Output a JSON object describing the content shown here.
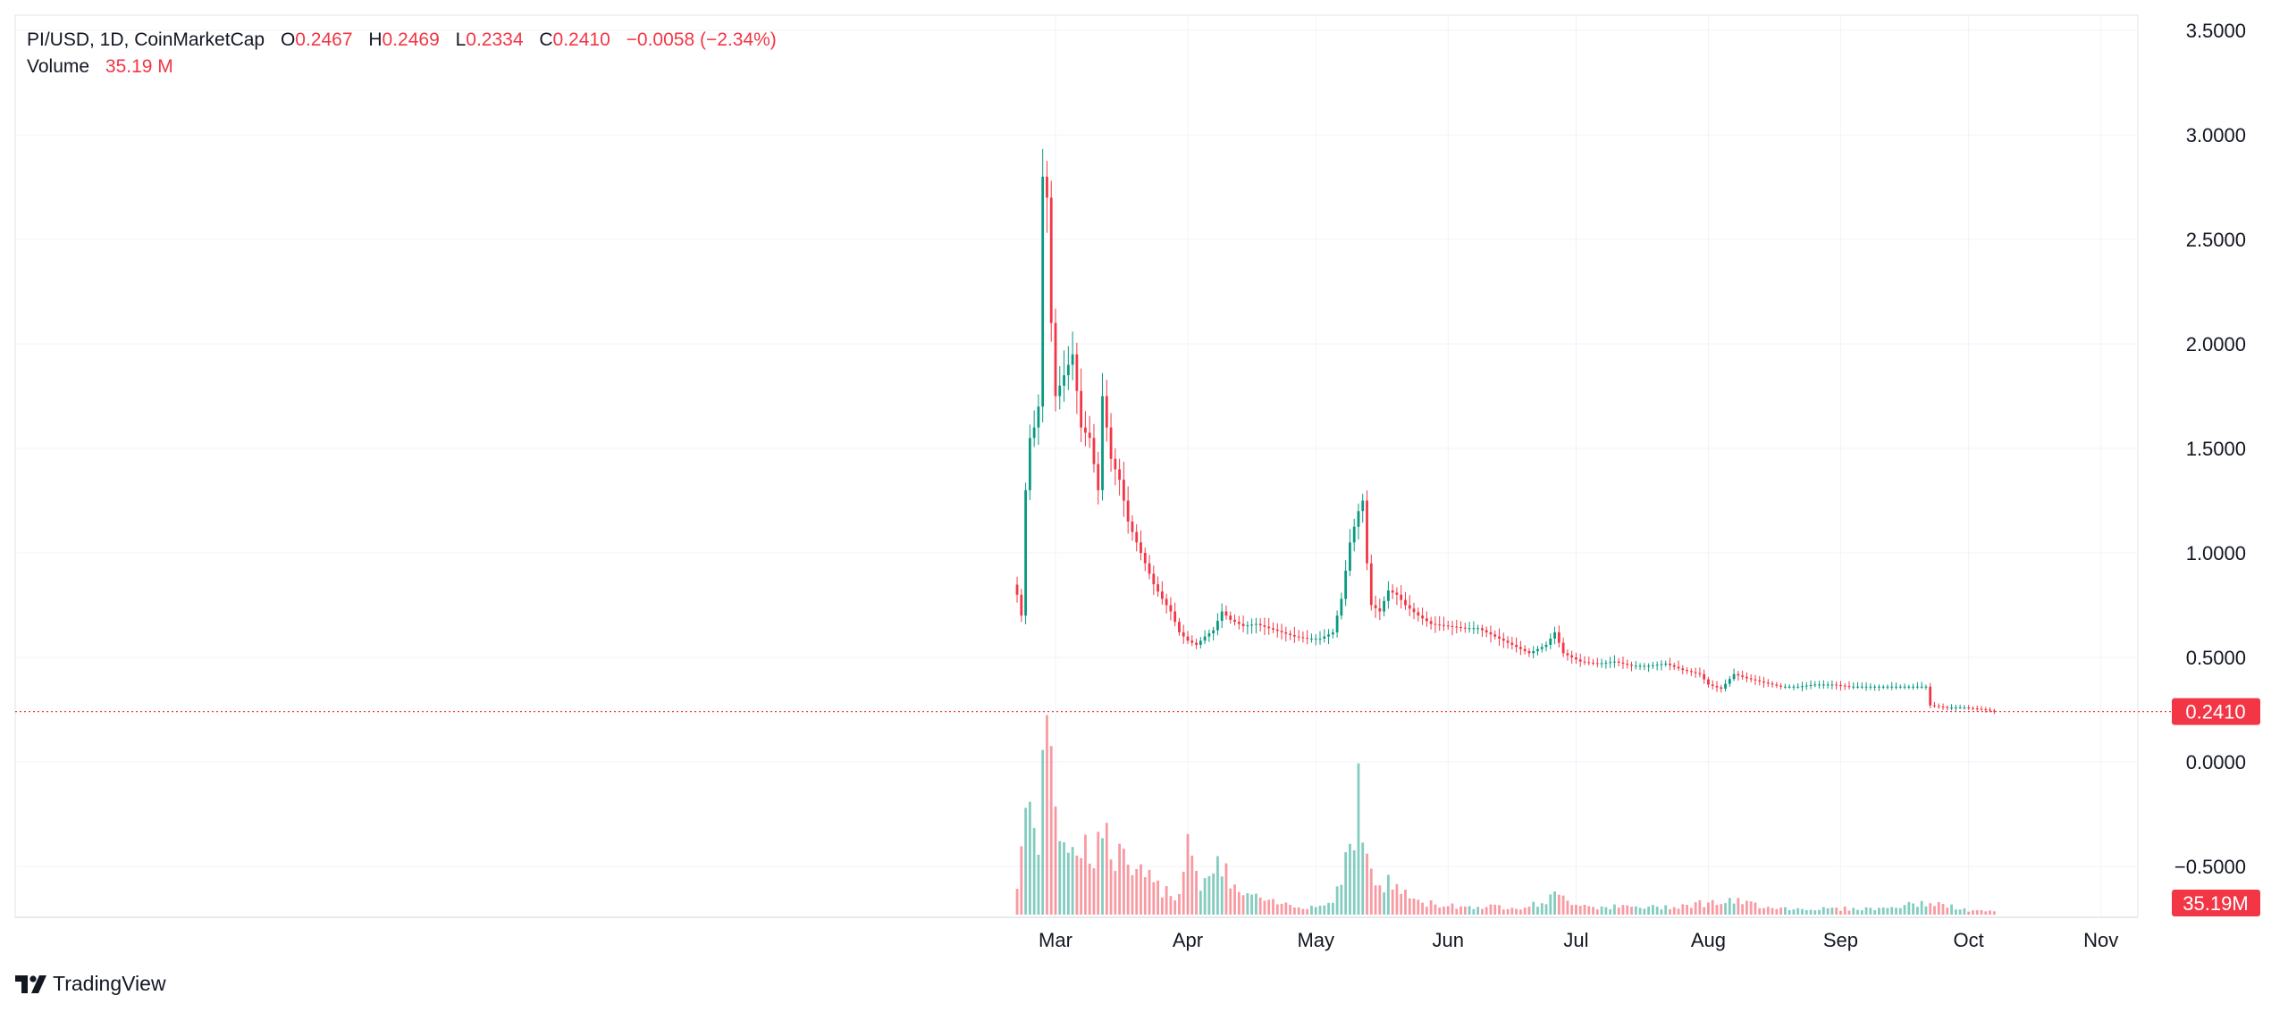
{
  "legend": {
    "symbol": "PI/USD, 1D, CoinMarketCap",
    "open_label": "O",
    "open_value": "0.2467",
    "high_label": "H",
    "high_value": "0.2469",
    "low_label": "L",
    "low_value": "0.2334",
    "close_label": "C",
    "close_value": "0.2410",
    "change": "−0.0058 (−2.34%)",
    "volume_label": "Volume",
    "volume_value": "35.19 M"
  },
  "brand": {
    "name": "TradingView",
    "icon": "tradingview-logo-icon"
  },
  "colors": {
    "up": "#089981",
    "down": "#f23645",
    "grid": "#f0f3fa",
    "text": "#131722"
  },
  "chart_data": {
    "type": "candlestick",
    "title": "PI/USD, 1D, CoinMarketCap",
    "x_axis": {
      "ticks": [
        "Mar",
        "Apr",
        "May",
        "Jun",
        "Jul",
        "Aug",
        "Sep",
        "Oct",
        "Nov"
      ]
    },
    "y_axis": {
      "ticks": [
        "3.5000",
        "3.0000",
        "2.5000",
        "2.0000",
        "1.5000",
        "1.0000",
        "0.5000",
        "0.0000",
        "−0.5000"
      ],
      "range": [
        -0.74,
        3.58
      ]
    },
    "last_price": {
      "value": 0.241,
      "label": "0.2410"
    },
    "last_volume": {
      "label": "35.19M"
    },
    "grid": true,
    "price_keypoints": [
      [
        "2025-02-20",
        0.8
      ],
      [
        "2025-02-21",
        0.7
      ],
      [
        "2025-02-22",
        1.3
      ],
      [
        "2025-02-23",
        1.55
      ],
      [
        "2025-02-24",
        1.6
      ],
      [
        "2025-02-25",
        1.7
      ],
      [
        "2025-02-26",
        2.8
      ],
      [
        "2025-02-27",
        2.7
      ],
      [
        "2025-02-28",
        2.1
      ],
      [
        "2025-03-01",
        1.75
      ],
      [
        "2025-03-03",
        1.85
      ],
      [
        "2025-03-05",
        1.95
      ],
      [
        "2025-03-07",
        1.6
      ],
      [
        "2025-03-09",
        1.55
      ],
      [
        "2025-03-11",
        1.3
      ],
      [
        "2025-03-12",
        1.75
      ],
      [
        "2025-03-14",
        1.45
      ],
      [
        "2025-03-16",
        1.35
      ],
      [
        "2025-03-18",
        1.15
      ],
      [
        "2025-03-20",
        1.05
      ],
      [
        "2025-03-22",
        0.95
      ],
      [
        "2025-03-24",
        0.85
      ],
      [
        "2025-03-26",
        0.78
      ],
      [
        "2025-03-28",
        0.72
      ],
      [
        "2025-03-30",
        0.62
      ],
      [
        "2025-04-01",
        0.58
      ],
      [
        "2025-04-03",
        0.56
      ],
      [
        "2025-04-05",
        0.6
      ],
      [
        "2025-04-07",
        0.63
      ],
      [
        "2025-04-09",
        0.72
      ],
      [
        "2025-04-11",
        0.68
      ],
      [
        "2025-04-14",
        0.65
      ],
      [
        "2025-04-17",
        0.66
      ],
      [
        "2025-04-20",
        0.64
      ],
      [
        "2025-04-23",
        0.62
      ],
      [
        "2025-04-26",
        0.6
      ],
      [
        "2025-04-29",
        0.59
      ],
      [
        "2025-05-02",
        0.59
      ],
      [
        "2025-05-05",
        0.62
      ],
      [
        "2025-05-07",
        0.78
      ],
      [
        "2025-05-09",
        1.05
      ],
      [
        "2025-05-11",
        1.2
      ],
      [
        "2025-05-12",
        1.25
      ],
      [
        "2025-05-13",
        0.95
      ],
      [
        "2025-05-14",
        0.75
      ],
      [
        "2025-05-16",
        0.72
      ],
      [
        "2025-05-18",
        0.82
      ],
      [
        "2025-05-20",
        0.8
      ],
      [
        "2025-05-22",
        0.75
      ],
      [
        "2025-05-25",
        0.7
      ],
      [
        "2025-05-28",
        0.66
      ],
      [
        "2025-06-01",
        0.65
      ],
      [
        "2025-06-05",
        0.64
      ],
      [
        "2025-06-08",
        0.64
      ],
      [
        "2025-06-12",
        0.6
      ],
      [
        "2025-06-16",
        0.56
      ],
      [
        "2025-06-20",
        0.52
      ],
      [
        "2025-06-24",
        0.56
      ],
      [
        "2025-06-26",
        0.62
      ],
      [
        "2025-06-28",
        0.52
      ],
      [
        "2025-07-02",
        0.48
      ],
      [
        "2025-07-06",
        0.47
      ],
      [
        "2025-07-10",
        0.48
      ],
      [
        "2025-07-14",
        0.46
      ],
      [
        "2025-07-18",
        0.46
      ],
      [
        "2025-07-22",
        0.47
      ],
      [
        "2025-07-26",
        0.44
      ],
      [
        "2025-07-30",
        0.42
      ],
      [
        "2025-08-01",
        0.37
      ],
      [
        "2025-08-04",
        0.35
      ],
      [
        "2025-08-07",
        0.42
      ],
      [
        "2025-08-10",
        0.4
      ],
      [
        "2025-08-14",
        0.38
      ],
      [
        "2025-08-18",
        0.36
      ],
      [
        "2025-08-22",
        0.36
      ],
      [
        "2025-08-26",
        0.37
      ],
      [
        "2025-08-30",
        0.37
      ],
      [
        "2025-09-03",
        0.36
      ],
      [
        "2025-09-08",
        0.36
      ],
      [
        "2025-09-13",
        0.36
      ],
      [
        "2025-09-17",
        0.36
      ],
      [
        "2025-09-21",
        0.36
      ],
      [
        "2025-09-22",
        0.27
      ],
      [
        "2025-09-26",
        0.26
      ],
      [
        "2025-09-30",
        0.26
      ],
      [
        "2025-10-05",
        0.25
      ],
      [
        "2025-10-07",
        0.241
      ]
    ],
    "volume_scale_max": 540,
    "volume_keypoints": [
      [
        "2025-02-20",
        90
      ],
      [
        "2025-02-22",
        250
      ],
      [
        "2025-02-25",
        200
      ],
      [
        "2025-02-26",
        540
      ],
      [
        "2025-02-27",
        370
      ],
      [
        "2025-03-01",
        260
      ],
      [
        "2025-03-05",
        190
      ],
      [
        "2025-03-09",
        160
      ],
      [
        "2025-03-12",
        200
      ],
      [
        "2025-03-15",
        150
      ],
      [
        "2025-03-20",
        100
      ],
      [
        "2025-03-25",
        70
      ],
      [
        "2025-03-30",
        50
      ],
      [
        "2025-04-01",
        240
      ],
      [
        "2025-04-03",
        90
      ],
      [
        "2025-04-09",
        115
      ],
      [
        "2025-04-13",
        55
      ],
      [
        "2025-04-20",
        30
      ],
      [
        "2025-04-30",
        20
      ],
      [
        "2025-05-05",
        30
      ],
      [
        "2025-05-09",
        190
      ],
      [
        "2025-05-11",
        300
      ],
      [
        "2025-05-13",
        130
      ],
      [
        "2025-05-15",
        80
      ],
      [
        "2025-05-20",
        70
      ],
      [
        "2025-05-25",
        30
      ],
      [
        "2025-06-05",
        20
      ],
      [
        "2025-06-20",
        20
      ],
      [
        "2025-06-26",
        45
      ],
      [
        "2025-07-05",
        20
      ],
      [
        "2025-07-20",
        18
      ],
      [
        "2025-08-01",
        30
      ],
      [
        "2025-08-07",
        32
      ],
      [
        "2025-08-20",
        15
      ],
      [
        "2025-09-10",
        15
      ],
      [
        "2025-09-22",
        30
      ],
      [
        "2025-10-01",
        10
      ],
      [
        "2025-10-07",
        8
      ]
    ]
  }
}
